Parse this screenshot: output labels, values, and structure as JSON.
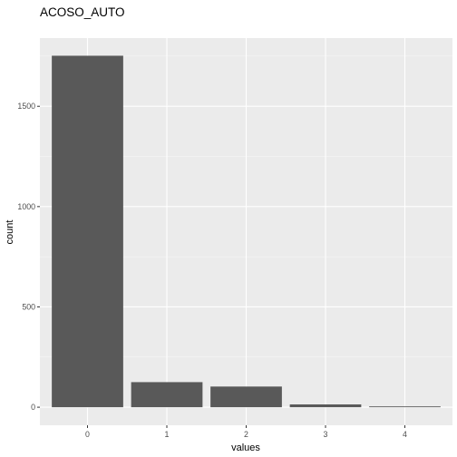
{
  "chart_data": {
    "type": "bar",
    "title": "ACOSO_AUTO",
    "xlabel": "values",
    "ylabel": "count",
    "categories": [
      "0",
      "1",
      "2",
      "3",
      "4"
    ],
    "values": [
      1752,
      125,
      103,
      14,
      4
    ],
    "ylim": [
      -90,
      1840
    ],
    "yticks": [
      0,
      500,
      1000,
      1500
    ],
    "grid": true,
    "legend": "none",
    "colors": {
      "panel": "#ebebeb",
      "grid_major": "#ffffff",
      "bar": "#595959",
      "tick_text": "#4d4d4d"
    }
  }
}
